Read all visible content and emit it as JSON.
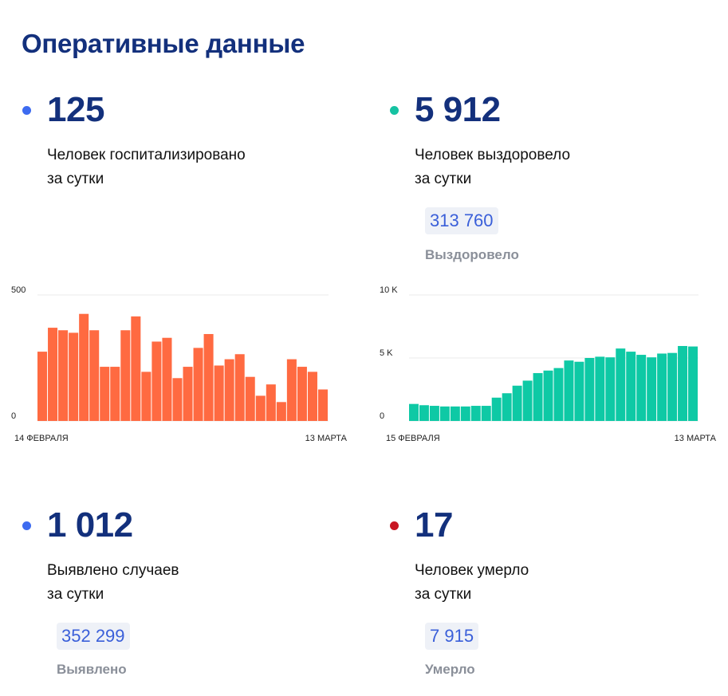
{
  "page_title": "Оперативные данные",
  "colors": {
    "title": "#13307c",
    "blue_dot": "#3d6bf0",
    "green_dot": "#15c2a2",
    "red_dot": "#c81622",
    "bar_orange": "#ff6a41",
    "bar_green": "#0ec9a5",
    "pill_text": "#3a5fd9"
  },
  "stats": {
    "hospitalized": {
      "value": "125",
      "desc_line1": "Человек госпитализировано",
      "desc_line2": "за сутки"
    },
    "recovered": {
      "value": "5 912",
      "desc_line1": "Человек выздоровело",
      "desc_line2": "за сутки",
      "total": "313 760",
      "total_label": "Выздоровело"
    },
    "cases": {
      "value": "1 012",
      "desc_line1": "Выявлено случаев",
      "desc_line2": "за сутки",
      "total": "352 299",
      "total_label": "Выявлено"
    },
    "deaths": {
      "value": "17",
      "desc_line1": "Человек умерло",
      "desc_line2": "за сутки",
      "total": "7 915",
      "total_label": "Умерло"
    }
  },
  "chart_data": [
    {
      "type": "bar",
      "color": "#ff6a41",
      "ylim": [
        0,
        500
      ],
      "yticks": [
        {
          "value": 0,
          "label": "0"
        },
        {
          "value": 500,
          "label": "500"
        }
      ],
      "x_start_label": "14 ФЕВРАЛЯ",
      "x_end_label": "13 МАРТА",
      "grid": true,
      "values": [
        275,
        370,
        360,
        350,
        425,
        360,
        215,
        215,
        360,
        415,
        195,
        315,
        330,
        170,
        215,
        290,
        345,
        220,
        245,
        265,
        175,
        100,
        145,
        75,
        245,
        215,
        195,
        125
      ]
    },
    {
      "type": "bar",
      "color": "#0ec9a5",
      "ylim": [
        0,
        10000
      ],
      "yticks": [
        {
          "value": 0,
          "label": "0"
        },
        {
          "value": 5000,
          "label": "5 K"
        },
        {
          "value": 10000,
          "label": "10 K"
        }
      ],
      "x_start_label": "15 ФЕВРАЛЯ",
      "x_end_label": "13 МАРТА",
      "grid": true,
      "values": [
        1350,
        1250,
        1200,
        1150,
        1150,
        1150,
        1200,
        1200,
        1850,
        2200,
        2800,
        3200,
        3800,
        4000,
        4200,
        4800,
        4700,
        5000,
        5100,
        5050,
        5750,
        5500,
        5250,
        5050,
        5350,
        5400,
        5950,
        5912
      ]
    }
  ]
}
